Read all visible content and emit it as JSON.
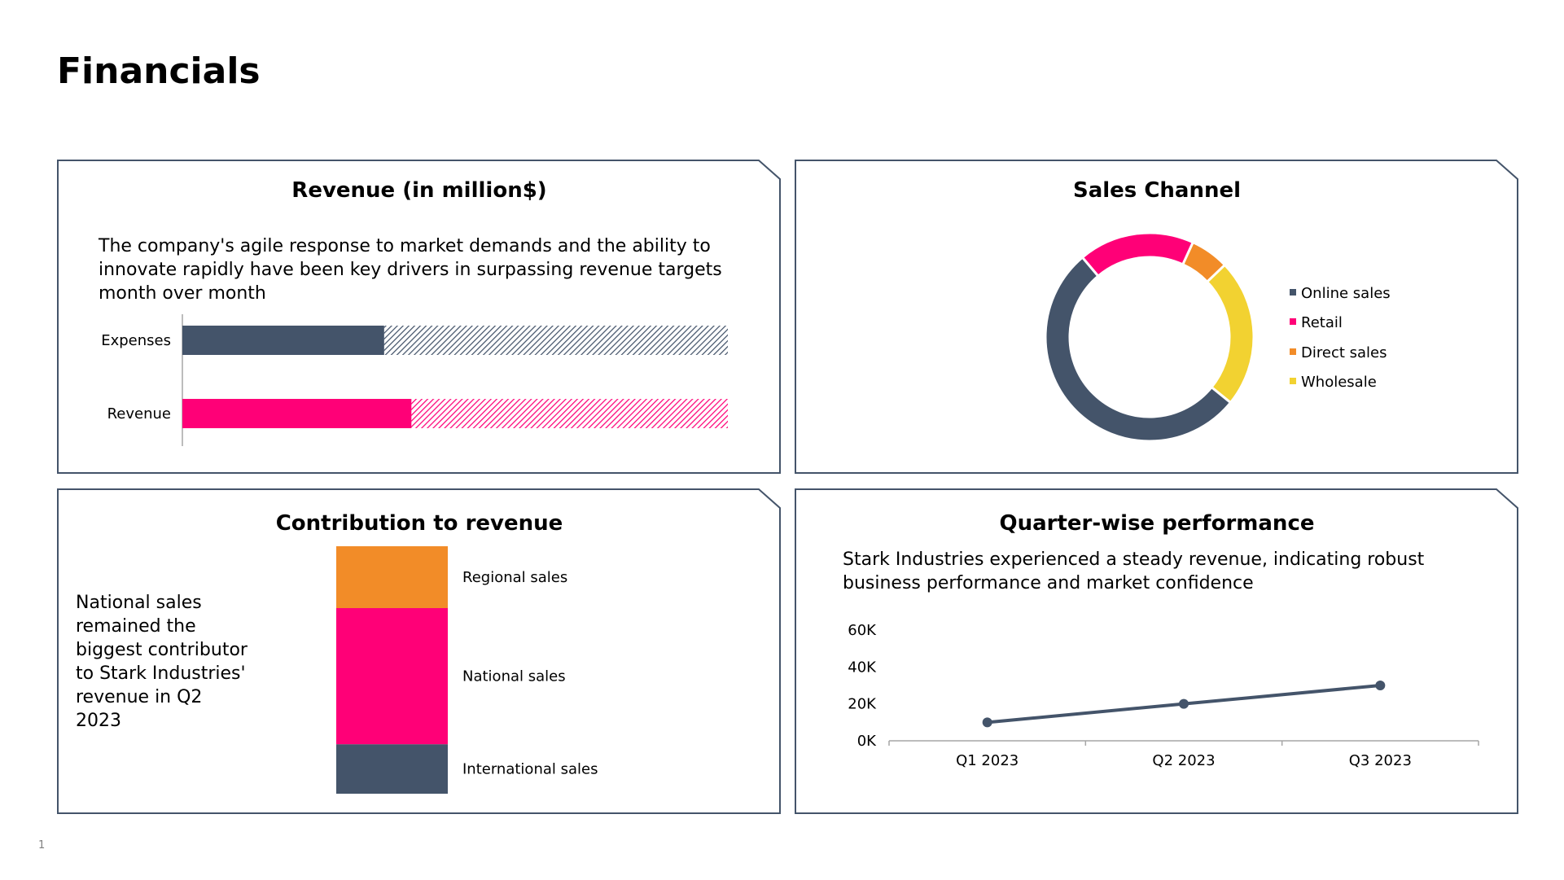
{
  "page": {
    "title": "Financials",
    "slide_number": "1"
  },
  "colors": {
    "navy": "#44546a",
    "pink": "#ff0077",
    "orange": "#f28c28",
    "yellow": "#f2d231",
    "border": "#44546a"
  },
  "revenue_panel": {
    "title": "Revenue (in million$)",
    "text": "The company's agile response to market demands and the ability to innovate rapidly have been key drivers in surpassing revenue targets month over month"
  },
  "sales_panel": {
    "title": "Sales Channel"
  },
  "contribution_panel": {
    "title": "Contribution to revenue",
    "text": "National sales remained the biggest contributor to Stark Industries' revenue in Q2 2023"
  },
  "quarter_panel": {
    "title": "Quarter-wise performance",
    "text": "Stark Industries experienced a steady revenue, indicating robust business performance and market confidence"
  },
  "chart_data": [
    {
      "type": "bar",
      "orientation": "horizontal",
      "stacked": true,
      "categories": [
        "Expenses",
        "Revenue"
      ],
      "series": [
        {
          "name": "",
          "values": [
            37,
            42
          ],
          "pattern": "solid"
        },
        {
          "name": "",
          "values": [
            63,
            58
          ],
          "pattern": "hatched"
        }
      ],
      "colors": [
        "#44546a",
        "#ff0077"
      ]
    },
    {
      "type": "pie",
      "donut": true,
      "labels": [
        "Online sales",
        "Retail",
        "Direct sales",
        "Wholesale"
      ],
      "values": [
        53,
        18,
        6,
        23
      ],
      "colors": [
        "#44546a",
        "#ff0077",
        "#f28c28",
        "#f2d231"
      ],
      "legend": "right"
    },
    {
      "type": "bar",
      "stacked": true,
      "categories": [
        "Q2 2023"
      ],
      "series": [
        {
          "name": "International sales",
          "values": [
            20
          ]
        },
        {
          "name": "National sales",
          "values": [
            55
          ]
        },
        {
          "name": "Regional sales",
          "values": [
            25
          ]
        }
      ],
      "colors": [
        "#44546a",
        "#ff0077",
        "#f28c28"
      ],
      "labels_position": "right"
    },
    {
      "type": "line",
      "x": [
        "Q1 2023",
        "Q2 2023",
        "Q3 2023"
      ],
      "y": [
        10000,
        20000,
        30000
      ],
      "yticks": [
        "0K",
        "20K",
        "40K",
        "60K"
      ],
      "ylim": [
        0,
        60000
      ],
      "grid": false,
      "color": "#44546a"
    }
  ]
}
